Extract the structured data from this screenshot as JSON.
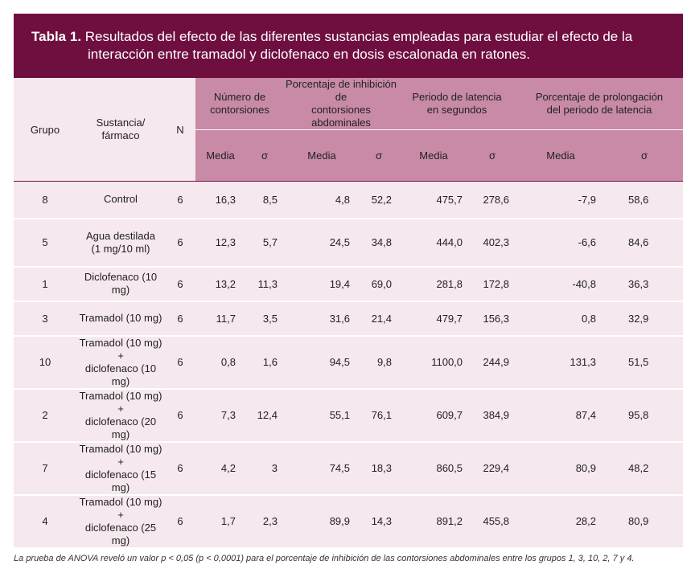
{
  "title": {
    "label": "Tabla 1.",
    "line1": "Resultados del efecto de las diferentes sustancias empleadas para estudiar el efecto de la",
    "line2": "interacción entre tramadol y diclofenaco en dosis escalonada en ratones."
  },
  "headers": {
    "grupo": "Grupo",
    "sustancia_1": "Sustancia/",
    "sustancia_2": "fármaco",
    "n": "N",
    "contorsiones_1": "Número de",
    "contorsiones_2": "contorsiones",
    "inhibicion_1": "Porcentaje de inhibición de",
    "inhibicion_2": "contorsiones abdominales",
    "latencia_1": "Periodo de latencia",
    "latencia_2": "en segundos",
    "prolongacion_1": "Porcentaje de prolongación",
    "prolongacion_2": "del periodo de latencia",
    "media": "Media",
    "sigma": "σ"
  },
  "rows": [
    {
      "grupo": "8",
      "sust1": "Control",
      "sust2": "",
      "n": "6",
      "c_media": "16,3",
      "c_sigma": "8,5",
      "i_media": "4,8",
      "i_sigma": "52,2",
      "l_media": "475,7",
      "l_sigma": "278,6",
      "p_media": "-7,9",
      "p_sigma": "58,6"
    },
    {
      "grupo": "5",
      "sust1": "Agua destilada",
      "sust2": "(1 mg/10 ml)",
      "n": "6",
      "c_media": "12,3",
      "c_sigma": "5,7",
      "i_media": "24,5",
      "i_sigma": "34,8",
      "l_media": "444,0",
      "l_sigma": "402,3",
      "p_media": "-6,6",
      "p_sigma": "84,6"
    },
    {
      "grupo": "1",
      "sust1": "Diclofenaco (10 mg)",
      "sust2": "",
      "n": "6",
      "c_media": "13,2",
      "c_sigma": "11,3",
      "i_media": "19,4",
      "i_sigma": "69,0",
      "l_media": "281,8",
      "l_sigma": "172,8",
      "p_media": "-40,8",
      "p_sigma": "36,3"
    },
    {
      "grupo": "3",
      "sust1": "Tramadol (10 mg)",
      "sust2": "",
      "n": "6",
      "c_media": "11,7",
      "c_sigma": "3,5",
      "i_media": "31,6",
      "i_sigma": "21,4",
      "l_media": "479,7",
      "l_sigma": "156,3",
      "p_media": "0,8",
      "p_sigma": "32,9"
    },
    {
      "grupo": "10",
      "sust1": "Tramadol (10 mg) +",
      "sust2": "diclofenaco (10 mg)",
      "n": "6",
      "c_media": "0,8",
      "c_sigma": "1,6",
      "i_media": "94,5",
      "i_sigma": "9,8",
      "l_media": "1100,0",
      "l_sigma": "244,9",
      "p_media": "131,3",
      "p_sigma": "51,5"
    },
    {
      "grupo": "2",
      "sust1": "Tramadol (10 mg) +",
      "sust2": "diclofenaco (20 mg)",
      "n": "6",
      "c_media": "7,3",
      "c_sigma": "12,4",
      "i_media": "55,1",
      "i_sigma": "76,1",
      "l_media": "609,7",
      "l_sigma": "384,9",
      "p_media": "87,4",
      "p_sigma": "95,8"
    },
    {
      "grupo": "7",
      "sust1": "Tramadol (10 mg) +",
      "sust2": "diclofenaco (15 mg)",
      "n": "6",
      "c_media": "4,2",
      "c_sigma": "3",
      "i_media": "74,5",
      "i_sigma": "18,3",
      "l_media": "860,5",
      "l_sigma": "229,4",
      "p_media": "80,9",
      "p_sigma": "48,2"
    },
    {
      "grupo": "4",
      "sust1": "Tramadol (10 mg) +",
      "sust2": "diclofenaco (25 mg)",
      "n": "6",
      "c_media": "1,7",
      "c_sigma": "2,3",
      "i_media": "89,9",
      "i_sigma": "14,3",
      "l_media": "891,2",
      "l_sigma": "455,8",
      "p_media": "28,2",
      "p_sigma": "80,9"
    }
  ],
  "footnote": "La prueba de ANOVA reveló un valor p < 0,05 (p < 0,0001) para el porcentaje de inhibición de las contorsiones abdominales entre los grupos 1, 3, 10, 2, 7 y 4.",
  "colors": {
    "title_bg": "#6e0f3f",
    "header_dark": "#c88aa6",
    "header_light": "#f5e8ee",
    "row_bg": "#f5e8ee"
  }
}
